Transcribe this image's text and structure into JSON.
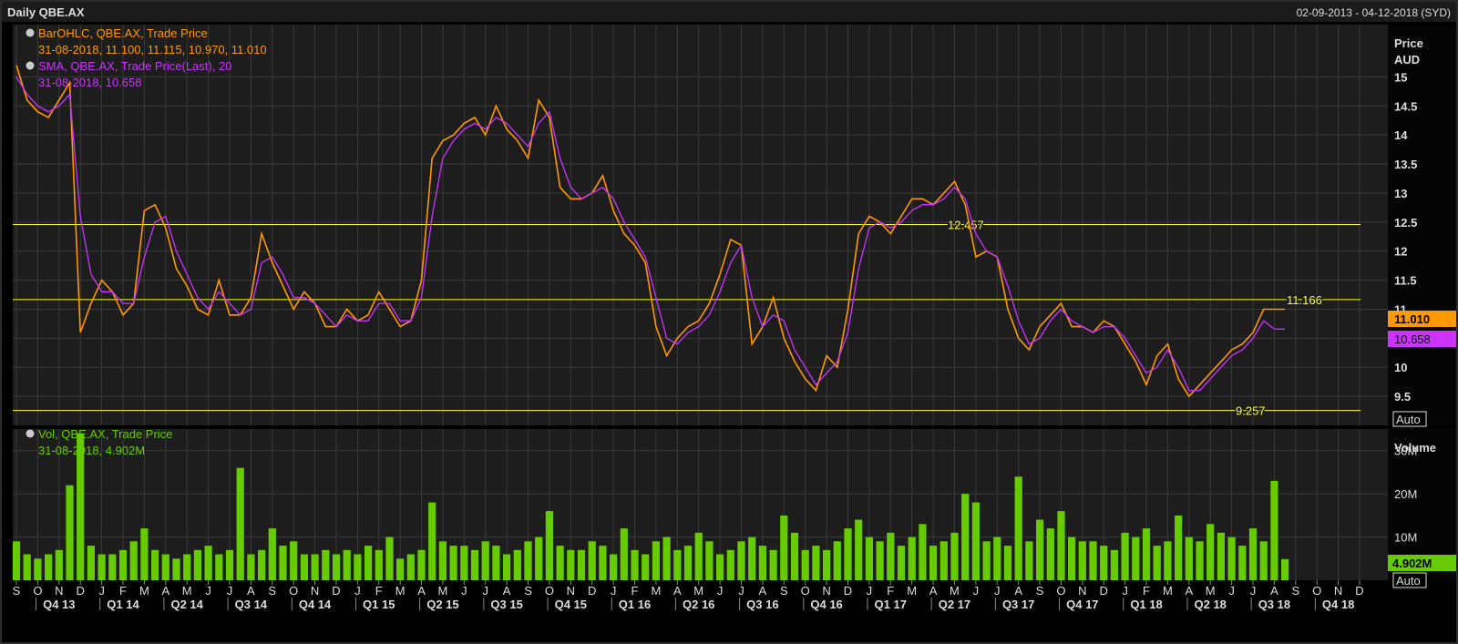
{
  "header": {
    "title": "Daily QBE.AX",
    "range": "02-09-2013 - 04-12-2018 (SYD)"
  },
  "colors": {
    "price": "#ff9900",
    "sma": "#cc33ff",
    "volume": "#66cc00",
    "level": "#ffff33",
    "grid": "#3a3a3a",
    "text": "#cccccc"
  },
  "legend": {
    "ohlc_title": "BarOHLC, QBE.AX, Trade Price",
    "ohlc_values": "31-08-2018, 11.100, 11.115, 10.970, 11.010",
    "sma_title": "SMA, QBE.AX, Trade Price(Last),  20",
    "sma_values": "31-08-2018, 10.658",
    "vol_title": "Vol, QBE.AX, Trade Price",
    "vol_values": "31-08-2018, 4.902M"
  },
  "axis": {
    "price_label": "Price",
    "price_unit": "AUD",
    "volume_label": "Volume",
    "auto_label": "Auto",
    "price_badge": "11.010",
    "sma_badge": "10.658",
    "volume_badge": "4.902M"
  },
  "chart_data": [
    {
      "type": "line",
      "title": "Daily QBE.AX",
      "ylabel": "Price AUD",
      "ylim": [
        9.0,
        15.9
      ],
      "yticks": [
        9.5,
        10,
        10.5,
        11,
        11.5,
        12,
        12.5,
        13,
        13.5,
        14,
        14.5,
        15
      ],
      "ytick_labels": [
        "9.5",
        "10",
        "10.5",
        "11",
        "11.5",
        "12",
        "12.5",
        "13",
        "13.5",
        "14",
        "14.5",
        "15"
      ],
      "xlim": [
        0,
        63
      ],
      "month_labels": [
        "S",
        "O",
        "N",
        "D",
        "J",
        "F",
        "M",
        "A",
        "M",
        "J",
        "J",
        "A",
        "S",
        "O",
        "N",
        "D",
        "J",
        "F",
        "M",
        "A",
        "M",
        "J",
        "J",
        "A",
        "S",
        "O",
        "N",
        "D",
        "J",
        "F",
        "M",
        "A",
        "M",
        "J",
        "J",
        "A",
        "S",
        "O",
        "N",
        "D",
        "J",
        "F",
        "M",
        "A",
        "M",
        "J",
        "J",
        "A",
        "S",
        "O",
        "N",
        "D",
        "J",
        "F",
        "M",
        "A",
        "M",
        "J",
        "J",
        "A",
        "S",
        "O",
        "N",
        "D"
      ],
      "quarter_labels": [
        "Q4 13",
        "Q1 14",
        "Q2 14",
        "Q3 14",
        "Q4 14",
        "Q1 15",
        "Q2 15",
        "Q3 15",
        "Q4 15",
        "Q1 16",
        "Q2 16",
        "Q3 16",
        "Q4 16",
        "Q1 17",
        "Q2 17",
        "Q3 17",
        "Q4 17",
        "Q1 18",
        "Q2 18",
        "Q3 18",
        "Q4 18"
      ],
      "horizontal_levels": [
        {
          "value": 12.457,
          "label": "12.457"
        },
        {
          "value": 11.166,
          "label": "11.166"
        },
        {
          "value": 9.257,
          "label": "9.257"
        }
      ],
      "series": [
        {
          "name": "BarOHLC, QBE.AX, Trade Price",
          "x": [
            0,
            0.5,
            1,
            1.5,
            2,
            2.5,
            3,
            3.5,
            4,
            4.5,
            5,
            5.5,
            6,
            6.5,
            7,
            7.5,
            8,
            8.5,
            9,
            9.5,
            10,
            10.5,
            11,
            11.5,
            12,
            12.5,
            13,
            13.5,
            14,
            14.5,
            15,
            15.5,
            16,
            16.5,
            17,
            17.5,
            18,
            18.5,
            19,
            19.5,
            20,
            20.5,
            21,
            21.5,
            22,
            22.5,
            23,
            23.5,
            24,
            24.5,
            25,
            25.5,
            26,
            26.5,
            27,
            27.5,
            28,
            28.5,
            29,
            29.5,
            30,
            30.5,
            31,
            31.5,
            32,
            32.5,
            33,
            33.5,
            34,
            34.5,
            35,
            35.5,
            36,
            36.5,
            37,
            37.5,
            38,
            38.5,
            39,
            39.5,
            40,
            40.5,
            41,
            41.5,
            42,
            42.5,
            43,
            43.5,
            44,
            44.5,
            45,
            45.5,
            46,
            46.5,
            47,
            47.5,
            48,
            48.5,
            49,
            49.5,
            50,
            50.5,
            51,
            51.5,
            52,
            52.5,
            53,
            53.5,
            54,
            54.5,
            55,
            55.5,
            56,
            56.5,
            57,
            57.5,
            58,
            58.5,
            59,
            59.5
          ],
          "values": [
            15.2,
            14.6,
            14.4,
            14.3,
            14.6,
            14.9,
            10.6,
            11.1,
            11.5,
            11.3,
            10.9,
            11.1,
            12.7,
            12.8,
            12.4,
            11.7,
            11.4,
            11.0,
            10.9,
            11.5,
            10.9,
            10.9,
            11.2,
            12.3,
            11.8,
            11.4,
            11.0,
            11.3,
            11.1,
            10.7,
            10.7,
            11.0,
            10.8,
            10.9,
            11.3,
            11.0,
            10.7,
            10.8,
            11.5,
            13.6,
            13.9,
            14.0,
            14.2,
            14.3,
            14.0,
            14.5,
            14.1,
            13.9,
            13.6,
            14.6,
            14.3,
            13.1,
            12.9,
            12.9,
            13.0,
            13.3,
            12.7,
            12.3,
            12.1,
            11.8,
            10.7,
            10.2,
            10.5,
            10.7,
            10.8,
            11.1,
            11.6,
            12.2,
            12.1,
            10.4,
            10.7,
            11.2,
            10.5,
            10.1,
            9.8,
            9.6,
            10.2,
            10.0,
            11.0,
            12.3,
            12.6,
            12.5,
            12.3,
            12.6,
            12.9,
            12.9,
            12.8,
            13.0,
            13.2,
            12.8,
            11.9,
            12.0,
            11.9,
            11.0,
            10.5,
            10.3,
            10.7,
            10.9,
            11.1,
            10.7,
            10.7,
            10.6,
            10.8,
            10.7,
            10.4,
            10.1,
            9.7,
            10.2,
            10.4,
            9.8,
            9.5,
            9.7,
            9.9,
            10.1,
            10.3,
            10.4,
            10.6,
            11.0,
            11.0,
            11.0
          ]
        },
        {
          "name": "SMA, QBE.AX, Trade Price(Last),  20",
          "x": [
            0,
            0.5,
            1,
            1.5,
            2,
            2.5,
            3,
            3.5,
            4,
            4.5,
            5,
            5.5,
            6,
            6.5,
            7,
            7.5,
            8,
            8.5,
            9,
            9.5,
            10,
            10.5,
            11,
            11.5,
            12,
            12.5,
            13,
            13.5,
            14,
            14.5,
            15,
            15.5,
            16,
            16.5,
            17,
            17.5,
            18,
            18.5,
            19,
            19.5,
            20,
            20.5,
            21,
            21.5,
            22,
            22.5,
            23,
            23.5,
            24,
            24.5,
            25,
            25.5,
            26,
            26.5,
            27,
            27.5,
            28,
            28.5,
            29,
            29.5,
            30,
            30.5,
            31,
            31.5,
            32,
            32.5,
            33,
            33.5,
            34,
            34.5,
            35,
            35.5,
            36,
            36.5,
            37,
            37.5,
            38,
            38.5,
            39,
            39.5,
            40,
            40.5,
            41,
            41.5,
            42,
            42.5,
            43,
            43.5,
            44,
            44.5,
            45,
            45.5,
            46,
            46.5,
            47,
            47.5,
            48,
            48.5,
            49,
            49.5,
            50,
            50.5,
            51,
            51.5,
            52,
            52.5,
            53,
            53.5,
            54,
            54.5,
            55,
            55.5,
            56,
            56.5,
            57,
            57.5,
            58,
            58.5,
            59,
            59.5
          ],
          "values": [
            15.0,
            14.7,
            14.5,
            14.4,
            14.5,
            14.7,
            12.6,
            11.6,
            11.3,
            11.3,
            11.1,
            11.1,
            11.9,
            12.5,
            12.6,
            12.0,
            11.6,
            11.2,
            11.0,
            11.3,
            11.1,
            10.9,
            11.0,
            11.8,
            11.9,
            11.6,
            11.2,
            11.2,
            11.1,
            10.9,
            10.7,
            10.9,
            10.8,
            10.8,
            11.1,
            11.1,
            10.8,
            10.8,
            11.2,
            12.6,
            13.6,
            13.9,
            14.1,
            14.2,
            14.1,
            14.3,
            14.2,
            14.0,
            13.8,
            14.2,
            14.4,
            13.6,
            13.1,
            12.9,
            13.0,
            13.1,
            12.9,
            12.5,
            12.2,
            11.9,
            11.2,
            10.5,
            10.4,
            10.6,
            10.7,
            10.9,
            11.3,
            11.8,
            12.1,
            11.2,
            10.7,
            10.9,
            10.8,
            10.3,
            10.0,
            9.7,
            9.9,
            10.1,
            10.6,
            11.7,
            12.4,
            12.5,
            12.4,
            12.5,
            12.7,
            12.8,
            12.8,
            12.9,
            13.1,
            12.9,
            12.3,
            12.0,
            11.9,
            11.4,
            10.8,
            10.4,
            10.5,
            10.8,
            11.0,
            10.8,
            10.7,
            10.6,
            10.7,
            10.7,
            10.5,
            10.2,
            9.9,
            10.0,
            10.3,
            10.0,
            9.6,
            9.6,
            9.8,
            10.0,
            10.2,
            10.3,
            10.5,
            10.8,
            10.66,
            10.658
          ]
        }
      ]
    },
    {
      "type": "bar",
      "title": "Vol, QBE.AX, Trade Price",
      "ylabel": "Volume",
      "ylim": [
        0,
        35
      ],
      "yticks": [
        10,
        20,
        30
      ],
      "ytick_labels": [
        "10M",
        "20M",
        "30M"
      ],
      "x": [
        0,
        0.5,
        1,
        1.5,
        2,
        2.5,
        3,
        3.5,
        4,
        4.5,
        5,
        5.5,
        6,
        6.5,
        7,
        7.5,
        8,
        8.5,
        9,
        9.5,
        10,
        10.5,
        11,
        11.5,
        12,
        12.5,
        13,
        13.5,
        14,
        14.5,
        15,
        15.5,
        16,
        16.5,
        17,
        17.5,
        18,
        18.5,
        19,
        19.5,
        20,
        20.5,
        21,
        21.5,
        22,
        22.5,
        23,
        23.5,
        24,
        24.5,
        25,
        25.5,
        26,
        26.5,
        27,
        27.5,
        28,
        28.5,
        29,
        29.5,
        30,
        30.5,
        31,
        31.5,
        32,
        32.5,
        33,
        33.5,
        34,
        34.5,
        35,
        35.5,
        36,
        36.5,
        37,
        37.5,
        38,
        38.5,
        39,
        39.5,
        40,
        40.5,
        41,
        41.5,
        42,
        42.5,
        43,
        43.5,
        44,
        44.5,
        45,
        45.5,
        46,
        46.5,
        47,
        47.5,
        48,
        48.5,
        49,
        49.5,
        50,
        50.5,
        51,
        51.5,
        52,
        52.5,
        53,
        53.5,
        54,
        54.5,
        55,
        55.5,
        56,
        56.5,
        57,
        57.5,
        58,
        58.5,
        59,
        59.5
      ],
      "values": [
        9,
        6,
        5,
        6,
        7,
        22,
        34,
        8,
        6,
        6,
        7,
        9,
        12,
        7,
        6,
        5,
        6,
        7,
        8,
        6,
        7,
        26,
        6,
        7,
        12,
        8,
        9,
        6,
        6,
        7,
        6,
        7,
        6,
        8,
        7,
        10,
        5,
        6,
        7,
        18,
        9,
        8,
        8,
        7,
        9,
        8,
        6,
        7,
        9,
        10,
        16,
        8,
        7,
        7,
        9,
        8,
        6,
        12,
        7,
        6,
        9,
        10,
        7,
        8,
        11,
        9,
        6,
        7,
        9,
        10,
        8,
        7,
        15,
        11,
        7,
        8,
        7,
        9,
        12,
        14,
        10,
        9,
        11,
        8,
        10,
        13,
        8,
        9,
        11,
        20,
        18,
        9,
        10,
        8,
        24,
        9,
        14,
        12,
        16,
        10,
        9,
        9,
        8,
        7,
        11,
        10,
        12,
        8,
        9,
        15,
        10,
        9,
        13,
        11,
        10,
        8,
        12,
        9,
        23,
        4.902
      ],
      "last_value_label": "4.902M"
    }
  ]
}
